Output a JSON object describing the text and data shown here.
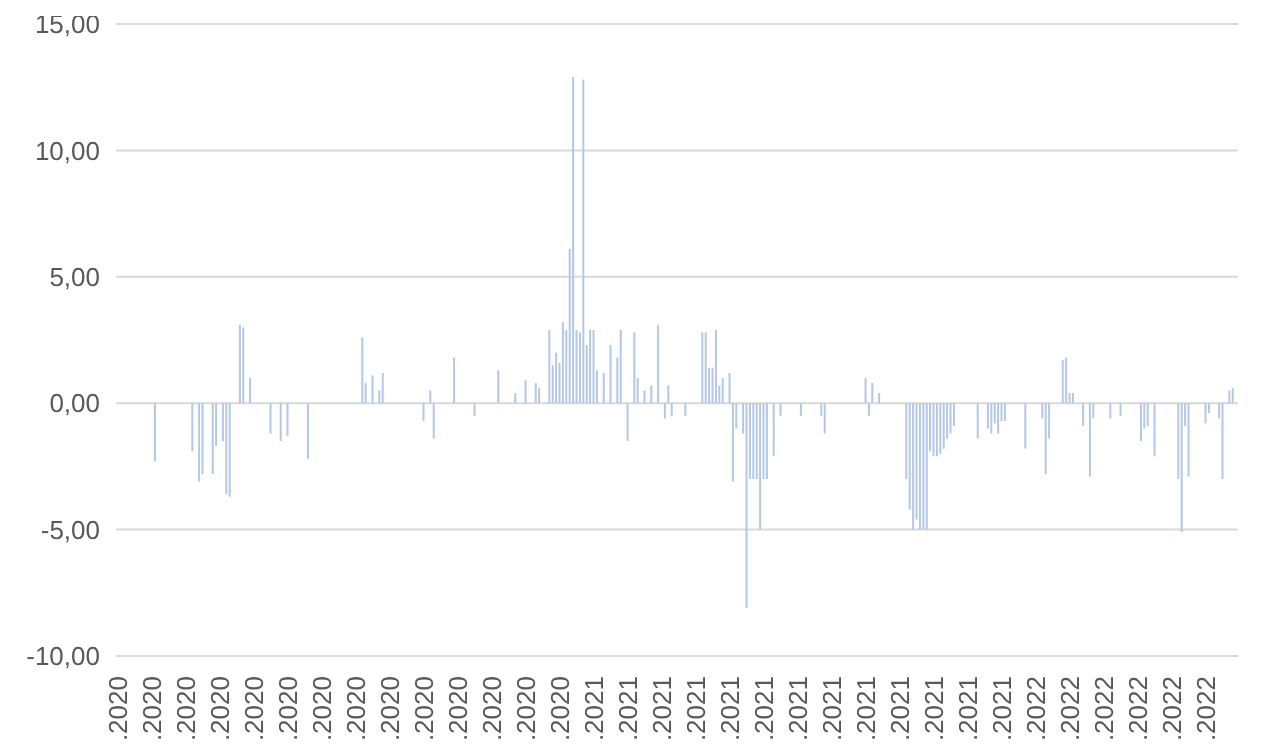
{
  "chart_data": {
    "type": "bar",
    "color": "#b4c7e7",
    "grid": "y",
    "legend": false,
    "ylim": [
      -10,
      15
    ],
    "yticks": [
      {
        "value": -10,
        "label": "-10,00"
      },
      {
        "value": -5,
        "label": "-5,00"
      },
      {
        "value": 0,
        "label": "0,00"
      },
      {
        "value": 5,
        "label": "5,00"
      },
      {
        "value": 10,
        "label": "10,00"
      },
      {
        "value": 15,
        "label": "15,00"
      }
    ],
    "categories": [
      ".2020",
      null,
      null,
      null,
      null,
      null,
      null,
      null,
      null,
      null,
      ".2020",
      null,
      null,
      null,
      null,
      null,
      null,
      null,
      null,
      null,
      ".2020",
      null,
      null,
      null,
      null,
      null,
      null,
      null,
      null,
      null,
      ".2020",
      null,
      null,
      null,
      null,
      null,
      null,
      null,
      null,
      null,
      ".2020",
      null,
      null,
      null,
      null,
      null,
      null,
      null,
      null,
      null,
      ".2020",
      null,
      null,
      null,
      null,
      null,
      null,
      null,
      null,
      null,
      ".2020",
      null,
      null,
      null,
      null,
      null,
      null,
      null,
      null,
      null,
      ".2020",
      null,
      null,
      null,
      null,
      null,
      null,
      null,
      null,
      null,
      ".2020",
      null,
      null,
      null,
      null,
      null,
      null,
      null,
      null,
      null,
      ".2020",
      null,
      null,
      null,
      null,
      null,
      null,
      null,
      null,
      null,
      ".2020",
      null,
      null,
      null,
      null,
      null,
      null,
      null,
      null,
      null,
      ".2020",
      null,
      null,
      null,
      null,
      null,
      null,
      null,
      null,
      null,
      ".2020",
      null,
      null,
      null,
      null,
      null,
      null,
      null,
      null,
      null,
      ".2020",
      null,
      null,
      null,
      null,
      null,
      null,
      null,
      null,
      null,
      ".2021",
      null,
      null,
      null,
      null,
      null,
      null,
      null,
      null,
      null,
      ".2021",
      null,
      null,
      null,
      null,
      null,
      null,
      null,
      null,
      null,
      ".2021",
      null,
      null,
      null,
      null,
      null,
      null,
      null,
      null,
      null,
      ".2021",
      null,
      null,
      null,
      null,
      null,
      null,
      null,
      null,
      null,
      ".2021",
      null,
      null,
      null,
      null,
      null,
      null,
      null,
      null,
      null,
      ".2021",
      null,
      null,
      null,
      null,
      null,
      null,
      null,
      null,
      null,
      ".2021",
      null,
      null,
      null,
      null,
      null,
      null,
      null,
      null,
      null,
      ".2021",
      null,
      null,
      null,
      null,
      null,
      null,
      null,
      null,
      null,
      ".2021",
      null,
      null,
      null,
      null,
      null,
      null,
      null,
      null,
      null,
      ".2021",
      null,
      null,
      null,
      null,
      null,
      null,
      null,
      null,
      null,
      ".2021",
      null,
      null,
      null,
      null,
      null,
      null,
      null,
      null,
      null,
      ".2021",
      null,
      null,
      null,
      null,
      null,
      null,
      null,
      null,
      null,
      ".2021",
      null,
      null,
      null,
      null,
      null,
      null,
      null,
      null,
      null,
      ".2022",
      null,
      null,
      null,
      null,
      null,
      null,
      null,
      null,
      null,
      ".2022",
      null,
      null,
      null,
      null,
      null,
      null,
      null,
      null,
      null,
      ".2022",
      null,
      null,
      null,
      null,
      null,
      null,
      null,
      null,
      null,
      ".2022",
      null,
      null,
      null,
      null,
      null,
      null,
      null,
      null,
      null,
      ".2022",
      null,
      null,
      null,
      null,
      null,
      null,
      null,
      null,
      null,
      ".2022",
      null,
      null,
      null,
      null,
      null,
      null,
      null,
      null,
      null
    ],
    "values": [
      null,
      null,
      null,
      null,
      null,
      null,
      null,
      null,
      null,
      null,
      null,
      -2.3,
      null,
      null,
      null,
      null,
      null,
      null,
      null,
      null,
      null,
      null,
      -1.9,
      null,
      -3.1,
      -2.8,
      null,
      null,
      -2.8,
      -1.7,
      null,
      -1.5,
      -3.6,
      -3.7,
      null,
      null,
      3.1,
      3.0,
      null,
      1.0,
      null,
      null,
      null,
      null,
      null,
      -1.2,
      null,
      null,
      -1.5,
      null,
      -1.3,
      null,
      null,
      null,
      null,
      null,
      -2.2,
      null,
      null,
      null,
      null,
      null,
      null,
      null,
      null,
      null,
      null,
      null,
      null,
      null,
      null,
      null,
      2.6,
      0.8,
      null,
      1.1,
      null,
      0.5,
      1.2,
      null,
      null,
      null,
      null,
      null,
      null,
      null,
      null,
      null,
      null,
      null,
      -0.7,
      null,
      0.5,
      -1.4,
      null,
      null,
      null,
      null,
      null,
      1.8,
      null,
      null,
      null,
      null,
      null,
      -0.5,
      null,
      null,
      null,
      null,
      null,
      null,
      1.3,
      null,
      null,
      null,
      null,
      0.4,
      null,
      null,
      0.9,
      null,
      null,
      0.8,
      0.6,
      null,
      null,
      2.9,
      1.5,
      2.0,
      1.6,
      3.2,
      2.9,
      6.1,
      12.9,
      2.9,
      2.8,
      12.8,
      2.3,
      2.9,
      2.9,
      1.3,
      null,
      1.2,
      null,
      2.3,
      null,
      1.8,
      2.9,
      null,
      -1.5,
      null,
      2.8,
      1.0,
      null,
      0.5,
      null,
      0.7,
      null,
      3.1,
      null,
      -0.6,
      0.7,
      -0.5,
      null,
      null,
      null,
      -0.5,
      null,
      null,
      null,
      null,
      2.8,
      2.8,
      1.4,
      1.4,
      2.9,
      0.7,
      1.0,
      null,
      1.2,
      -3.1,
      -1.0,
      null,
      -1.2,
      -8.1,
      -3.0,
      -3.0,
      -3.0,
      -5.0,
      -3.0,
      -3.0,
      null,
      -2.1,
      null,
      -0.5,
      null,
      null,
      null,
      null,
      null,
      -0.5,
      null,
      null,
      null,
      null,
      null,
      -0.5,
      -1.2,
      null,
      null,
      null,
      null,
      null,
      null,
      null,
      null,
      null,
      null,
      null,
      1.0,
      -0.5,
      0.8,
      null,
      0.4,
      null,
      null,
      null,
      null,
      null,
      null,
      null,
      -3.0,
      -4.2,
      -5.0,
      -4.6,
      -5.0,
      -5.0,
      -5.0,
      -1.9,
      -2.1,
      -2.1,
      -2.0,
      -1.8,
      -1.4,
      -1.2,
      -0.9,
      null,
      null,
      null,
      null,
      null,
      null,
      -1.4,
      null,
      null,
      -1.0,
      -1.2,
      -0.8,
      -1.2,
      -0.7,
      -0.7,
      null,
      null,
      null,
      null,
      null,
      -1.8,
      null,
      null,
      null,
      null,
      -0.6,
      -2.8,
      -1.4,
      null,
      null,
      null,
      1.7,
      1.8,
      0.4,
      0.4,
      null,
      null,
      -0.9,
      null,
      -2.9,
      -0.6,
      null,
      null,
      null,
      null,
      -0.6,
      null,
      null,
      -0.5,
      null,
      null,
      null,
      null,
      null,
      -1.5,
      -1.0,
      -0.9,
      null,
      -2.1,
      null,
      null,
      null,
      null,
      null,
      null,
      -3.0,
      -5.1,
      -0.9,
      -2.9,
      null,
      null,
      null,
      null,
      -0.8,
      -0.4,
      null,
      null,
      -0.6,
      -3.0,
      null,
      0.5,
      0.6,
      null
    ]
  }
}
